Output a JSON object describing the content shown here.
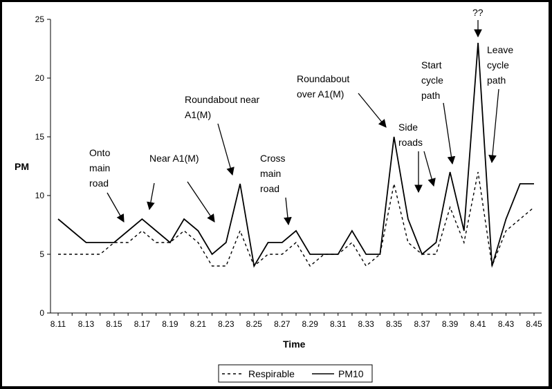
{
  "chart_data": {
    "type": "line",
    "xlabel": "Time",
    "ylabel": "PM",
    "ylim": [
      0,
      25
    ],
    "y_ticks": [
      0,
      5,
      10,
      15,
      20,
      25
    ],
    "x": [
      "8.11",
      "8.12",
      "8.13",
      "8.14",
      "8.15",
      "8.16",
      "8.17",
      "8.18",
      "8.19",
      "8.20",
      "8.21",
      "8.22",
      "8.23",
      "8.24",
      "8.25",
      "8.26",
      "8.27",
      "8.28",
      "8.29",
      "8.30",
      "8.31",
      "8.32",
      "8.33",
      "8.34",
      "8.35",
      "8.36",
      "8.37",
      "8.38",
      "8.39",
      "8.40",
      "8.41",
      "8.42",
      "8.43",
      "8.44",
      "8.45"
    ],
    "x_tick_labels": [
      "8.11",
      "8.13",
      "8.15",
      "8.17",
      "8.19",
      "8.21",
      "8.23",
      "8.25",
      "8.27",
      "8.29",
      "8.31",
      "8.33",
      "8.35",
      "8.37",
      "8.39",
      "8.41",
      "8.43",
      "8.45"
    ],
    "series": [
      {
        "name": "Respirable",
        "style": "dashed",
        "values": [
          5,
          5,
          5,
          5,
          6,
          6,
          7,
          6,
          6,
          7,
          6,
          4,
          4,
          7,
          4,
          5,
          5,
          6,
          4,
          5,
          5,
          6,
          4,
          5,
          11,
          6,
          5,
          5,
          9,
          6,
          12,
          4,
          7,
          8,
          9
        ]
      },
      {
        "name": "PM10",
        "style": "solid",
        "values": [
          8,
          7,
          6,
          6,
          6,
          7,
          8,
          7,
          6,
          8,
          7,
          5,
          6,
          11,
          4,
          6,
          6,
          7,
          5,
          5,
          5,
          7,
          5,
          5,
          15,
          8,
          5,
          6,
          12,
          7,
          23,
          4,
          8,
          11,
          11
        ]
      }
    ],
    "grid": false,
    "legend_position": "bottom",
    "annotations": [
      {
        "text": "Onto main road"
      },
      {
        "text": "Near A1(M)"
      },
      {
        "text": "Roundabout near A1(M)"
      },
      {
        "text": "Cross main road"
      },
      {
        "text": "Roundabout over A1(M)"
      },
      {
        "text": "Side roads"
      },
      {
        "text": "Start cycle path"
      },
      {
        "text": "??"
      },
      {
        "text": "Leave cycle path"
      }
    ]
  }
}
